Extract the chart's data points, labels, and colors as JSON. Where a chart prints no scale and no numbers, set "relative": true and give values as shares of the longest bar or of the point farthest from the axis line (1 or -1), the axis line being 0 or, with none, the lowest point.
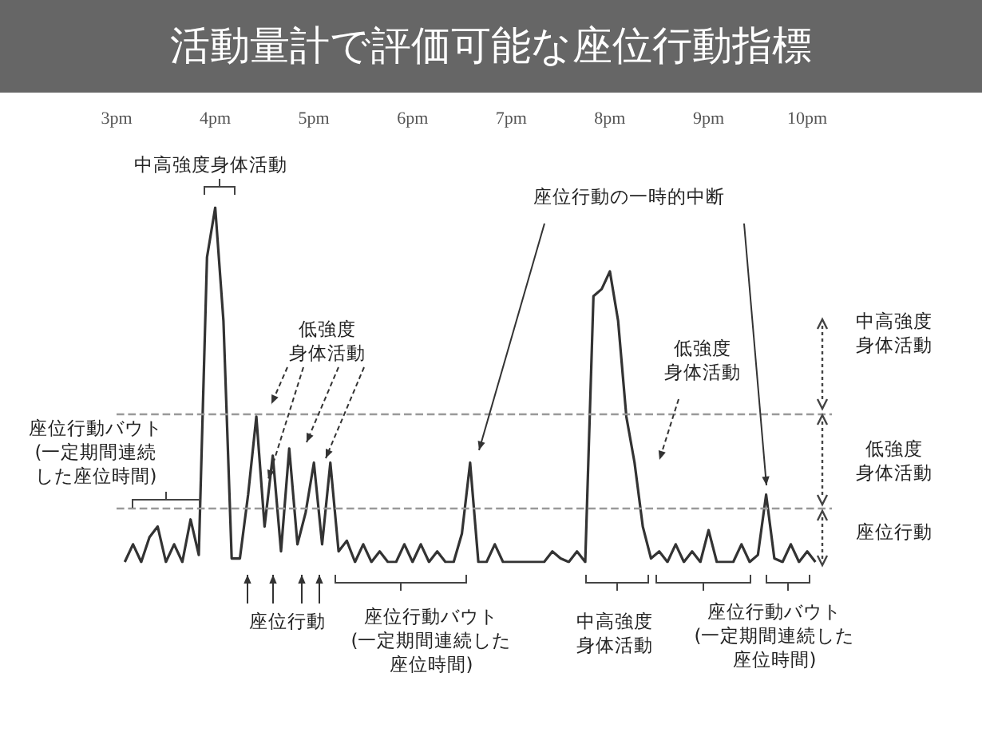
{
  "chart_data": {
    "type": "line",
    "title": "活動量計で評価可能な座位行動指標",
    "relative": true,
    "marker": "none",
    "line_style": "solid",
    "categories": [
      "3pm",
      null,
      null,
      null,
      null,
      null,
      null,
      null,
      null,
      null,
      null,
      null,
      "4pm",
      null,
      null,
      null,
      null,
      null,
      null,
      null,
      null,
      null,
      null,
      null,
      "5pm",
      null,
      null,
      null,
      null,
      null,
      null,
      null,
      null,
      null,
      null,
      null,
      "6pm",
      null,
      null,
      null,
      null,
      null,
      null,
      null,
      null,
      null,
      null,
      null,
      "7pm",
      null,
      null,
      null,
      null,
      null,
      null,
      null,
      null,
      null,
      null,
      null,
      "8pm",
      null,
      null,
      null,
      null,
      null,
      null,
      null,
      null,
      null,
      null,
      null,
      "9pm",
      null,
      null,
      null,
      null,
      null,
      null,
      null,
      null,
      null,
      null,
      null,
      "10pm",
      null,
      null,
      null
    ],
    "series": [
      {
        "color": "#333333",
        "values": [
          null,
          0,
          0.05,
          0,
          0.07,
          0.1,
          0,
          0.05,
          0,
          0.12,
          0.02,
          0.86,
          1,
          0.68,
          0.01,
          0.01,
          0.19,
          0.41,
          0.1,
          0.3,
          0.03,
          0.32,
          0.05,
          0.14,
          0.28,
          0.05,
          0.28,
          0.03,
          0.06,
          0,
          0.05,
          0,
          0.03,
          0,
          0,
          0.05,
          0,
          0.05,
          0,
          0.03,
          0,
          0,
          0.08,
          0.28,
          0,
          0,
          0.05,
          0,
          0,
          0,
          0,
          0,
          0,
          0.03,
          0.01,
          0,
          0.03,
          0,
          0.75,
          0.77,
          0.82,
          0.68,
          0.41,
          0.28,
          0.1,
          0.01,
          0.03,
          0,
          0.05,
          0,
          0.03,
          0,
          0.09,
          0,
          0,
          0,
          0.05,
          0,
          0.02,
          0.19,
          0.01,
          0,
          0.05,
          0,
          0.03,
          0,
          null,
          null
        ]
      }
    ],
    "ref_lines": [
      {
        "axis": "y",
        "value": 0.42,
        "line_style": "dashed",
        "color": "#999999"
      },
      {
        "axis": "y",
        "value": 0.15,
        "line_style": "dashed",
        "color": "#999999"
      }
    ],
    "annotations": [
      "中高強度身体活動",
      "低強度身体活動",
      "座位行動の一時的中断",
      "低強度身体活動",
      "座位行動バウト(一定期間連続した座位時間)",
      "座位行動",
      "座位行動バウト(一定期間連続した座位時間)",
      "中高強度身体活動",
      "座位行動バウト(一定期間連続した座位時間)",
      "中高強度身体活動",
      "低強度身体活動",
      "座位行動"
    ]
  }
}
